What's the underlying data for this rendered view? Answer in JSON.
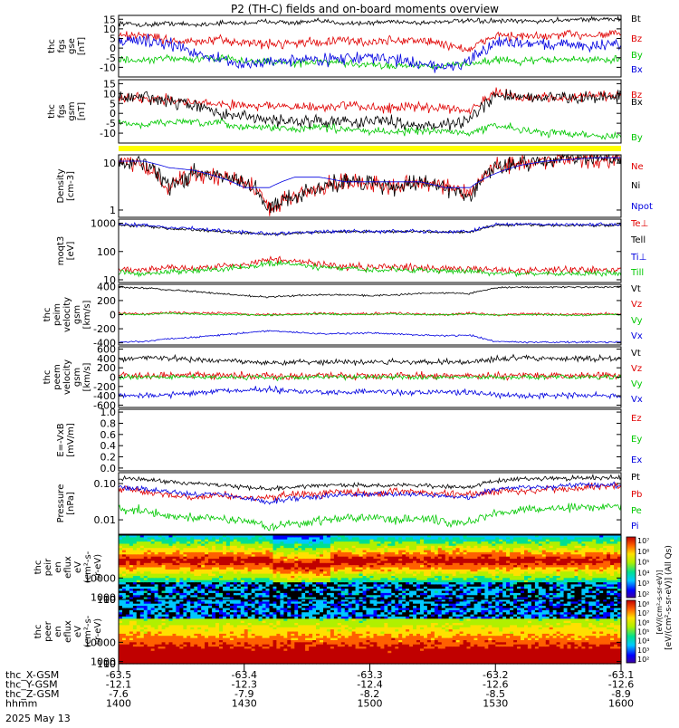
{
  "title": "P2 (TH-C) fields and on-board moments overview",
  "date_label": "2025 May 13",
  "colors": {
    "black": "#000000",
    "red": "#e00000",
    "green": "#00c800",
    "blue": "#0000e0",
    "yellow": "#ffff00",
    "darkred": "#800000"
  },
  "chart_data": [
    {
      "type": "line",
      "ylabel": [
        "thc",
        "fgs",
        "gse",
        "[nT]"
      ],
      "ylim": [
        -15,
        17
      ],
      "yticks": [
        15,
        10,
        5,
        0,
        -5,
        -10
      ],
      "series": [
        {
          "name": "Bt",
          "color": "#000000",
          "level": [
            13,
            12,
            13,
            12,
            13,
            13,
            14,
            13,
            14,
            13,
            13,
            14,
            13,
            14,
            14,
            14,
            14,
            14,
            15,
            15,
            15
          ],
          "noise": 1
        },
        {
          "name": "Bz",
          "color": "#e00000",
          "level": [
            6,
            7,
            4,
            3,
            4,
            3,
            2,
            3,
            3,
            4,
            3,
            4,
            4,
            2,
            -1,
            7,
            6,
            6,
            7,
            7,
            8
          ],
          "noise": 2
        },
        {
          "name": "By",
          "color": "#00c800",
          "level": [
            -6,
            -7,
            -5,
            -6,
            -5,
            -7,
            -7,
            -8,
            -7,
            -8,
            -9,
            -9,
            -9,
            -9,
            -8,
            -6,
            -7,
            -6,
            -6,
            -6,
            -6
          ],
          "noise": 1.5
        },
        {
          "name": "Bx",
          "color": "#0000e0",
          "level": [
            4,
            4,
            2,
            -2,
            -6,
            -9,
            -7,
            -6,
            -6,
            -5,
            -5,
            -6,
            -8,
            -10,
            -7,
            3,
            3,
            2,
            2,
            1,
            2
          ],
          "noise": 2.5
        }
      ]
    },
    {
      "type": "line",
      "ylabel": [
        "thc",
        "fgs",
        "gsm",
        "[nT]"
      ],
      "ylim": [
        -15,
        17
      ],
      "yticks": [
        15,
        10,
        5,
        0,
        -5,
        -10
      ],
      "series": [
        {
          "name": "Bz",
          "color": "#e00000",
          "level": [
            8,
            8,
            7,
            5,
            5,
            4,
            4,
            3,
            3,
            4,
            3,
            3,
            3,
            3,
            2,
            10,
            8,
            8,
            8,
            9,
            9
          ],
          "noise": 2
        },
        {
          "name": "Bx",
          "color": "#000000",
          "level": [
            8,
            8,
            6,
            4,
            0,
            -2,
            -3,
            -4,
            -4,
            -4,
            -4,
            -4,
            -6,
            -6,
            -3,
            9,
            8,
            8,
            8,
            8,
            9
          ],
          "noise": 2.5
        },
        {
          "name": "By",
          "color": "#00c800",
          "level": [
            -5,
            -6,
            -4,
            -5,
            -5,
            -7,
            -7,
            -8,
            -7,
            -8,
            -9,
            -9,
            -9,
            -9,
            -10,
            -6,
            -8,
            -10,
            -10,
            -11,
            -12
          ],
          "noise": 1.5
        }
      ]
    },
    {
      "type": "line",
      "log": true,
      "ylabel": [
        "Density",
        "[cm-3]"
      ],
      "ylim": [
        0.7,
        15
      ],
      "yticks": [
        10,
        1
      ],
      "yticklabels": [
        "10",
        "1"
      ],
      "series": [
        {
          "name": "Ne",
          "color": "#e00000",
          "level": [
            11,
            9,
            3,
            6,
            5,
            4,
            1,
            2,
            3,
            4,
            4,
            3,
            4,
            3,
            2,
            8,
            10,
            11,
            13,
            12,
            13
          ],
          "noise": 0.15
        },
        {
          "name": "Ni",
          "color": "#000000",
          "level": [
            11,
            9,
            3,
            6,
            5,
            4,
            1,
            2,
            3,
            4,
            4,
            3,
            4,
            3,
            2,
            8,
            10,
            11,
            13,
            12,
            13
          ],
          "noise": 0.15
        },
        {
          "name": "Npot",
          "color": "#0000e0",
          "level": [
            11,
            11,
            8,
            7,
            5,
            3,
            3,
            5,
            5,
            4,
            4,
            4,
            4,
            3,
            3,
            6,
            9,
            11,
            12,
            13,
            13
          ],
          "noise": 0
        }
      ]
    },
    {
      "type": "line",
      "log": true,
      "ylabel": [
        "moqt3",
        "[eV]"
      ],
      "ylim": [
        8,
        1400
      ],
      "yticks": [
        1000,
        100,
        10
      ],
      "yticklabels": [
        "1000",
        "100",
        "10"
      ],
      "series": [
        {
          "name": "Te⊥",
          "color": "#e00000",
          "level": [
            25,
            22,
            28,
            25,
            30,
            35,
            50,
            45,
            35,
            30,
            28,
            28,
            28,
            26,
            25,
            22,
            22,
            22,
            22,
            22,
            22
          ],
          "noise": 0.1
        },
        {
          "name": "Tell",
          "color": "#000000",
          "level": [
            850,
            800,
            650,
            600,
            500,
            450,
            400,
            450,
            480,
            500,
            500,
            500,
            500,
            480,
            480,
            850,
            900,
            850,
            850,
            850,
            850
          ],
          "noise": 0.04
        },
        {
          "name": "Ti⊥",
          "color": "#0000e0",
          "level": [
            900,
            850,
            700,
            650,
            550,
            480,
            420,
            480,
            500,
            520,
            520,
            520,
            520,
            500,
            500,
            900,
            950,
            900,
            900,
            900,
            900
          ],
          "noise": 0.05
        },
        {
          "name": "Till",
          "color": "#00c800",
          "level": [
            18,
            16,
            20,
            20,
            24,
            28,
            38,
            35,
            28,
            24,
            22,
            22,
            22,
            20,
            20,
            17,
            17,
            17,
            17,
            17,
            17
          ],
          "noise": 0.08
        }
      ]
    },
    {
      "type": "line",
      "ylabel": [
        "thc",
        "peim",
        "velocity",
        "gsm",
        "[km/s]"
      ],
      "ylim": [
        -430,
        430
      ],
      "yticks": [
        400,
        200,
        0,
        -200,
        -400
      ],
      "series": [
        {
          "name": "Vt",
          "color": "#000000",
          "level": [
            390,
            380,
            350,
            330,
            300,
            270,
            250,
            270,
            280,
            280,
            270,
            280,
            300,
            310,
            300,
            380,
            390,
            390,
            390,
            390,
            390
          ],
          "noise": 10
        },
        {
          "name": "Vz",
          "color": "#e00000",
          "level": [
            20,
            10,
            30,
            20,
            20,
            10,
            0,
            10,
            20,
            10,
            10,
            20,
            10,
            0,
            20,
            0,
            10,
            10,
            0,
            10,
            10
          ],
          "noise": 15
        },
        {
          "name": "Vy",
          "color": "#00c800",
          "level": [
            10,
            0,
            20,
            10,
            0,
            0,
            -10,
            0,
            10,
            0,
            0,
            10,
            0,
            0,
            10,
            -10,
            0,
            0,
            -10,
            0,
            0
          ],
          "noise": 10
        },
        {
          "name": "Vx",
          "color": "#0000e0",
          "level": [
            -390,
            -380,
            -340,
            -320,
            -290,
            -260,
            -230,
            -250,
            -270,
            -270,
            -260,
            -270,
            -290,
            -300,
            -290,
            -380,
            -390,
            -390,
            -390,
            -390,
            -390
          ],
          "noise": 10
        }
      ]
    },
    {
      "type": "line",
      "ylabel": [
        "thc",
        "peem",
        "velocity",
        "gsm",
        "[km/s]"
      ],
      "ylim": [
        -650,
        650
      ],
      "yticks": [
        600,
        400,
        200,
        0,
        -200,
        -400,
        -600
      ],
      "series": [
        {
          "name": "Vt",
          "color": "#000000",
          "level": [
            400,
            420,
            400,
            380,
            360,
            340,
            300,
            320,
            330,
            330,
            320,
            320,
            330,
            330,
            320,
            400,
            410,
            400,
            400,
            400,
            400
          ],
          "noise": 50
        },
        {
          "name": "Vz",
          "color": "#e00000",
          "level": [
            40,
            30,
            40,
            50,
            30,
            40,
            20,
            30,
            40,
            30,
            30,
            40,
            30,
            20,
            30,
            40,
            30,
            30,
            40,
            30,
            30
          ],
          "noise": 60
        },
        {
          "name": "Vy",
          "color": "#00c800",
          "level": [
            0,
            0,
            0,
            10,
            0,
            0,
            -10,
            0,
            0,
            0,
            0,
            0,
            0,
            0,
            0,
            0,
            0,
            0,
            0,
            0,
            0
          ],
          "noise": 40
        },
        {
          "name": "Vx",
          "color": "#0000e0",
          "level": [
            -380,
            -400,
            -380,
            -340,
            -300,
            -280,
            -260,
            -300,
            -320,
            -320,
            -310,
            -320,
            -330,
            -330,
            -320,
            -380,
            -390,
            -390,
            -390,
            -390,
            -390
          ],
          "noise": 50
        }
      ]
    },
    {
      "type": "line",
      "ylabel": [
        "E=-VxB",
        "[mV/m]"
      ],
      "ylim": [
        -0.05,
        1.05
      ],
      "yticks": [
        1.0,
        0.8,
        0.6,
        0.4,
        0.2,
        0.0
      ],
      "yticklabels": [
        "1.0",
        "0.8",
        "0.6",
        "0.4",
        "0.2",
        "0.0"
      ],
      "series": [
        {
          "name": "Ez",
          "color": "#e00000",
          "level": [],
          "noise": 0
        },
        {
          "name": "Ey",
          "color": "#00c800",
          "level": [],
          "noise": 0
        },
        {
          "name": "Ex",
          "color": "#0000e0",
          "level": [],
          "noise": 0
        }
      ]
    },
    {
      "type": "line",
      "log": true,
      "ylabel": [
        "Pressure",
        "[nPa]"
      ],
      "ylim": [
        0.004,
        0.2
      ],
      "yticks": [
        0.1,
        0.01
      ],
      "yticklabels": [
        "0.10",
        "0.01"
      ],
      "series": [
        {
          "name": "Pt",
          "color": "#000000",
          "level": [
            0.14,
            0.13,
            0.11,
            0.1,
            0.09,
            0.08,
            0.07,
            0.08,
            0.09,
            0.09,
            0.09,
            0.09,
            0.09,
            0.08,
            0.08,
            0.12,
            0.13,
            0.14,
            0.14,
            0.15,
            0.15
          ],
          "noise": 0.05
        },
        {
          "name": "Pb",
          "color": "#e00000",
          "level": [
            0.07,
            0.06,
            0.05,
            0.04,
            0.05,
            0.04,
            0.04,
            0.05,
            0.05,
            0.06,
            0.05,
            0.06,
            0.06,
            0.05,
            0.05,
            0.06,
            0.06,
            0.07,
            0.07,
            0.08,
            0.09
          ],
          "noise": 0.08
        },
        {
          "name": "Pe",
          "color": "#00c800",
          "level": [
            0.02,
            0.018,
            0.012,
            0.012,
            0.011,
            0.01,
            0.006,
            0.008,
            0.01,
            0.011,
            0.011,
            0.01,
            0.011,
            0.009,
            0.008,
            0.016,
            0.018,
            0.02,
            0.022,
            0.022,
            0.024
          ],
          "noise": 0.1
        },
        {
          "name": "Pi",
          "color": "#0000e0",
          "level": [
            0.08,
            0.07,
            0.06,
            0.05,
            0.05,
            0.04,
            0.03,
            0.04,
            0.045,
            0.05,
            0.05,
            0.05,
            0.05,
            0.045,
            0.04,
            0.07,
            0.08,
            0.08,
            0.09,
            0.09,
            0.09
          ],
          "noise": 0.06
        }
      ]
    },
    {
      "type": "heatmap",
      "ylabel": [
        "thc",
        "peir",
        "en",
        "eflux",
        "eV",
        "(cm²-s-",
        "sr-eV)"
      ],
      "yticks": [
        10000,
        1000,
        100,
        10
      ],
      "yticklabels": [
        "10000",
        "1000",
        "100",
        "10"
      ],
      "ylim": [
        7,
        30000
      ]
    },
    {
      "type": "heatmap",
      "ylabel": [
        "thc",
        "peer",
        "en",
        "eflux",
        "eV",
        "(cm²-s-",
        "sr-eV)"
      ],
      "yticks": [
        10000,
        1000,
        100,
        10
      ],
      "yticklabels": [
        "10000",
        "1000",
        "100",
        "10"
      ],
      "ylim": [
        7,
        30000
      ]
    }
  ],
  "colorbar": {
    "label": "[eV/(cm²-s-sr-eV)] (All Qs)",
    "label_lower": "[eV/(cm²-s-sr-eV)]",
    "ticks_top": [
      "10⁷",
      "10⁶",
      "10⁵",
      "10⁴",
      "10³",
      "10²"
    ],
    "ticks_bottom": [
      "10⁸",
      "10⁷",
      "10⁶",
      "10⁵",
      "10⁴",
      "10³",
      "10²"
    ]
  },
  "x_axis": {
    "rows": [
      {
        "label": "thc_X-GSM",
        "values": [
          "-63.5",
          "-63.4",
          "-63.3",
          "-63.2",
          "-63.1"
        ]
      },
      {
        "label": "thc_Y-GSM",
        "values": [
          "-12.1",
          "-12.3",
          "-12.4",
          "-12.6",
          "-12.6"
        ]
      },
      {
        "label": "thc_Z-GSM",
        "values": [
          "-7.6",
          "-7.9",
          "-8.2",
          "-8.5",
          "-8.9"
        ]
      },
      {
        "label": "hhmm",
        "values": [
          "1400",
          "1430",
          "1500",
          "1530",
          "1600"
        ]
      }
    ]
  }
}
